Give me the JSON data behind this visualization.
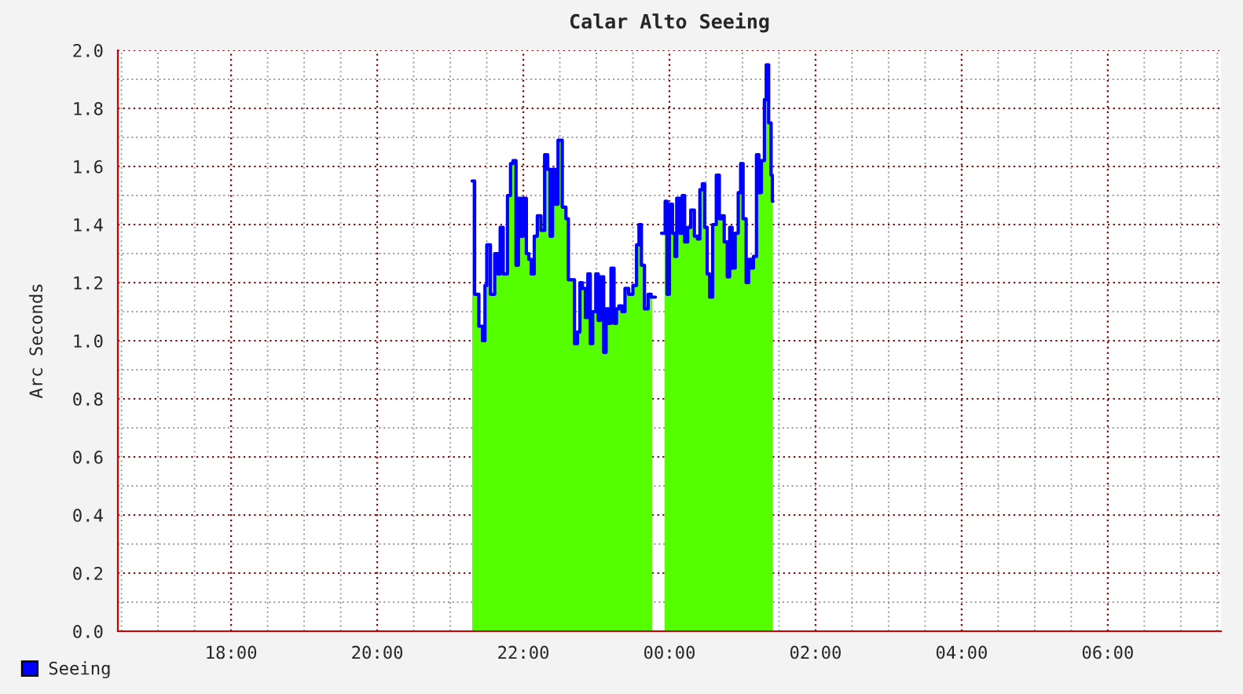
{
  "chart_data": {
    "type": "area",
    "title": "Calar Alto Seeing",
    "ylabel": "Arc Seconds",
    "x": [
      "2000-01-01T21:18",
      "2000-01-01T21:22",
      "2000-01-01T21:25",
      "2000-01-01T21:28",
      "2000-01-01T21:29",
      "2000-01-01T21:31",
      "2000-01-01T21:35",
      "2000-01-01T21:38",
      "2000-01-01T21:40",
      "2000-01-01T21:42",
      "2000-01-01T21:45",
      "2000-01-01T21:49",
      "2000-01-01T21:50",
      "2000-01-01T21:53",
      "2000-01-01T21:55",
      "2000-01-01T21:57",
      "2000-01-01T21:59",
      "2000-01-01T22:01",
      "2000-01-01T22:04",
      "2000-01-01T22:05",
      "2000-01-01T22:08",
      "2000-01-01T22:10",
      "2000-01-01T22:13",
      "2000-01-01T22:16",
      "2000-01-01T22:19",
      "2000-01-01T22:21",
      "2000-01-01T22:23",
      "2000-01-01T22:25",
      "2000-01-01T22:27",
      "2000-01-01T22:30",
      "2000-01-01T22:34",
      "2000-01-01T22:36",
      "2000-01-01T22:38",
      "2000-01-01T22:41",
      "2000-01-01T22:43",
      "2000-01-01T22:46",
      "2000-01-01T22:47",
      "2000-01-01T22:50",
      "2000-01-01T22:52",
      "2000-01-01T22:54",
      "2000-01-01T22:56",
      "2000-01-01T22:58",
      "2000-01-01T23:01",
      "2000-01-01T23:02",
      "2000-01-01T23:05",
      "2000-01-01T23:07",
      "2000-01-01T23:09",
      "2000-01-01T23:11",
      "2000-01-01T23:13",
      "2000-01-01T23:16",
      "2000-01-01T23:17",
      "2000-01-01T23:20",
      "2000-01-01T23:22",
      "2000-01-01T23:25",
      "2000-01-01T23:28",
      "2000-01-01T23:32",
      "2000-01-01T23:34",
      "2000-01-01T23:36",
      "2000-01-01T23:38",
      "2000-01-01T23:41",
      "2000-01-01T23:44",
      "2000-01-01T23:46",
      "2000-01-01T23:51",
      "2000-01-01T23:56",
      "2000-01-01T23:57",
      "2000-01-01T23:59",
      "2000-01-02T00:01",
      "2000-01-02T00:04",
      "2000-01-02T00:05",
      "2000-01-02T00:07",
      "2000-01-02T00:10",
      "2000-01-02T00:11",
      "2000-01-02T00:14",
      "2000-01-02T00:16",
      "2000-01-02T00:19",
      "2000-01-02T00:22",
      "2000-01-02T00:24",
      "2000-01-02T00:26",
      "2000-01-02T00:28",
      "2000-01-02T00:30",
      "2000-01-02T00:32",
      "2000-01-02T00:34",
      "2000-01-02T00:37",
      "2000-01-02T00:40",
      "2000-01-02T00:42",
      "2000-01-02T00:44",
      "2000-01-02T00:46",
      "2000-01-02T00:49",
      "2000-01-02T00:50",
      "2000-01-02T00:53",
      "2000-01-02T00:55",
      "2000-01-02T00:58",
      "2000-01-02T00:59",
      "2000-01-02T01:02",
      "2000-01-02T01:04",
      "2000-01-02T01:06",
      "2000-01-02T01:08",
      "2000-01-02T01:10",
      "2000-01-02T01:13",
      "2000-01-02T01:14",
      "2000-01-02T01:17",
      "2000-01-02T01:19",
      "2000-01-02T01:20",
      "2000-01-02T01:23",
      "2000-01-02T01:24",
      "2000-01-02T01:25"
    ],
    "series": [
      {
        "color": "#55ff00",
        "values": [
          1.55,
          1.16,
          1.05,
          1.0,
          1.19,
          1.33,
          1.16,
          1.3,
          1.23,
          1.39,
          1.23,
          1.5,
          1.61,
          1.62,
          1.26,
          1.49,
          1.36,
          1.49,
          1.3,
          1.28,
          1.23,
          1.36,
          1.43,
          1.38,
          1.64,
          1.59,
          1.36,
          1.59,
          1.47,
          1.69,
          1.46,
          1.42,
          1.21,
          1.21,
          0.99,
          1.03,
          1.2,
          1.18,
          1.08,
          1.23,
          0.99,
          1.1,
          1.23,
          1.07,
          1.22,
          0.96,
          1.11,
          1.06,
          1.25,
          1.06,
          1.11,
          1.12,
          1.1,
          1.18,
          1.16,
          1.19,
          1.33,
          1.4,
          1.26,
          1.11,
          1.16,
          1.15,
          null,
          1.37,
          1.48,
          1.16,
          1.47,
          1.37,
          1.29,
          1.49,
          1.37,
          1.5,
          1.34,
          1.39,
          1.45,
          1.36,
          1.35,
          1.52,
          1.54,
          1.39,
          1.23,
          1.15,
          1.4,
          1.57,
          1.42,
          1.43,
          1.34,
          1.22,
          1.39,
          1.25,
          1.37,
          1.51,
          1.61,
          1.42,
          1.2,
          1.28,
          1.25,
          1.29,
          1.64,
          1.51,
          1.62,
          1.83,
          1.95,
          1.75,
          1.57,
          1.48
        ]
      },
      {
        "type": "line",
        "name": "Seeing",
        "color": "#0000ff",
        "values": [
          1.55,
          1.16,
          1.05,
          1.0,
          1.19,
          1.33,
          1.16,
          1.3,
          1.23,
          1.39,
          1.23,
          1.5,
          1.61,
          1.62,
          1.26,
          1.49,
          1.36,
          1.49,
          1.3,
          1.28,
          1.23,
          1.36,
          1.43,
          1.38,
          1.64,
          1.59,
          1.36,
          1.59,
          1.47,
          1.69,
          1.46,
          1.42,
          1.21,
          1.21,
          0.99,
          1.03,
          1.2,
          1.18,
          1.08,
          1.23,
          0.99,
          1.1,
          1.23,
          1.07,
          1.22,
          0.96,
          1.11,
          1.06,
          1.25,
          1.06,
          1.11,
          1.12,
          1.1,
          1.18,
          1.16,
          1.19,
          1.33,
          1.4,
          1.26,
          1.11,
          1.16,
          1.15,
          null,
          1.37,
          1.48,
          1.16,
          1.47,
          1.37,
          1.29,
          1.49,
          1.37,
          1.5,
          1.34,
          1.39,
          1.45,
          1.36,
          1.35,
          1.52,
          1.54,
          1.39,
          1.23,
          1.15,
          1.4,
          1.57,
          1.42,
          1.43,
          1.34,
          1.22,
          1.39,
          1.25,
          1.37,
          1.51,
          1.61,
          1.42,
          1.2,
          1.28,
          1.25,
          1.29,
          1.64,
          1.51,
          1.62,
          1.83,
          1.95,
          1.75,
          1.57,
          1.48
        ]
      }
    ],
    "xlim": [
      "2000-01-01T16:27",
      "2000-01-02T07:33"
    ],
    "xticks": [
      {
        "value": "2000-01-01T18:00",
        "label": "18:00"
      },
      {
        "value": "2000-01-01T20:00",
        "label": "20:00"
      },
      {
        "value": "2000-01-01T22:00",
        "label": "22:00"
      },
      {
        "value": "2000-01-02T00:00",
        "label": "00:00"
      },
      {
        "value": "2000-01-02T02:00",
        "label": "02:00"
      },
      {
        "value": "2000-01-02T04:00",
        "label": "04:00"
      },
      {
        "value": "2000-01-02T06:00",
        "label": "06:00"
      }
    ],
    "ylim": [
      0,
      2.0
    ],
    "yticks": [
      {
        "value": 0,
        "label": "0.0"
      },
      {
        "value": 0.2,
        "label": "0.2"
      },
      {
        "value": 0.4,
        "label": "0.4"
      },
      {
        "value": 0.6,
        "label": "0.6"
      },
      {
        "value": 0.8,
        "label": "0.8"
      },
      {
        "value": 1.0,
        "label": "1.0"
      },
      {
        "value": 1.2,
        "label": "1.2"
      },
      {
        "value": 1.4,
        "label": "1.4"
      },
      {
        "value": 1.6,
        "label": "1.6"
      },
      {
        "value": 1.8,
        "label": "1.8"
      },
      {
        "value": 2.0,
        "label": "2.0"
      }
    ],
    "grid": true,
    "legend": "bottom left"
  }
}
